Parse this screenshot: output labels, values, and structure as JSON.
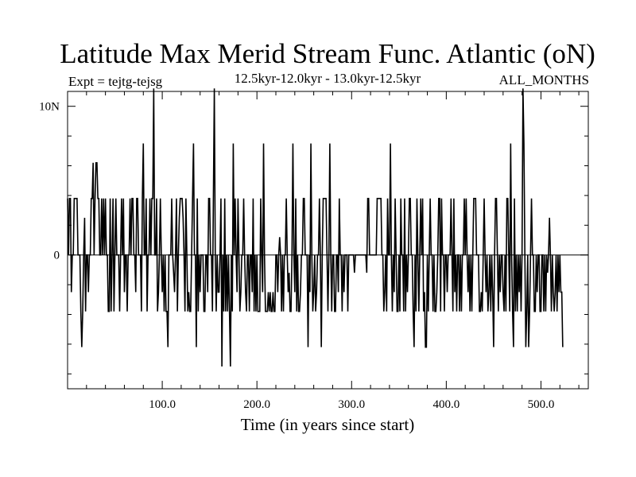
{
  "chart_data": {
    "type": "line",
    "title": "Latitude Max Merid Stream Func. Atlantic (oN)",
    "experiment": "Expt = tejtg-tejsg",
    "subtitle": "12.5kyr-12.0kyr - 13.0kyr-12.5kyr",
    "months": "ALL_MONTHS",
    "xlabel": "Time (in years since start)",
    "ylabel": "",
    "xlim": [
      0,
      550
    ],
    "ylim": [
      -9,
      11
    ],
    "x_ticks": [
      {
        "value": 100,
        "label": "100.0"
      },
      {
        "value": 200,
        "label": "200.0"
      },
      {
        "value": 300,
        "label": "300.0"
      },
      {
        "value": 400,
        "label": "400.0"
      },
      {
        "value": 500,
        "label": "500.0"
      }
    ],
    "y_ticks": [
      {
        "value": 0,
        "label": "0"
      },
      {
        "value": 10,
        "label": "10N"
      }
    ],
    "zero_line": true,
    "series": [
      {
        "step": 1,
        "values": [
          3.8,
          0,
          3.8,
          3.8,
          -2.5,
          0,
          0,
          3.8,
          3.8,
          3.8,
          3.8,
          0,
          0,
          0,
          -3.8,
          -6.2,
          -3.8,
          0,
          2.5,
          -3.8,
          0,
          0,
          -2.5,
          0,
          0,
          3.8,
          3.8,
          6.2,
          0,
          3.8,
          6.2,
          6.2,
          3.8,
          3.8,
          0,
          0,
          3.8,
          0,
          3.8,
          0,
          3.8,
          0,
          0,
          -3.8,
          -3.8,
          3.8,
          -3.8,
          0,
          3.8,
          -3.8,
          0,
          3.8,
          0,
          0,
          0,
          -3.8,
          0,
          3.8,
          0,
          3.8,
          -2.5,
          0,
          0,
          -3.8,
          0,
          0,
          3.8,
          0,
          3.8,
          3.8,
          0,
          0,
          -2.5,
          3.8,
          3.8,
          0,
          0,
          0,
          -3.8,
          3.8,
          7.5,
          0,
          0,
          3.8,
          -3.8,
          0,
          0,
          3.8,
          0,
          3.8,
          3.8,
          11.2,
          0,
          0,
          3.8,
          -3.8,
          -2.5,
          0,
          3.8,
          0,
          -2.5,
          0,
          -3.8,
          0,
          -3.8,
          -3.8,
          -6.2,
          0,
          0,
          0,
          3.8,
          0,
          -1.2,
          -2.5,
          0,
          3.8,
          -3.8,
          0,
          2.5,
          3.8,
          3.8,
          3.8,
          2.5,
          0,
          -3.8,
          3.8,
          0,
          -3.8,
          -2.5,
          -3.8,
          -3.8,
          0,
          3.8,
          7.5,
          0,
          0,
          -6.2,
          3.8,
          -3.8,
          0,
          -2.5,
          0,
          0,
          0,
          -3.8,
          -3.8,
          0,
          0,
          -2.5,
          3.8,
          3.8,
          0,
          0,
          -3.8,
          3.8,
          11.2,
          0,
          -3.8,
          0,
          -2.5,
          -2.5,
          0,
          3.8,
          -7.5,
          0,
          -3.8,
          3.8,
          -3.8,
          0,
          -3.8,
          0,
          -3.8,
          -7.5,
          0,
          -3.8,
          7.5,
          0,
          3.8,
          0,
          -2.5,
          3.8,
          0,
          -3.8,
          -2.5,
          0,
          0,
          3.8,
          0,
          -2.5,
          -3.8,
          0,
          0,
          -3.8,
          0,
          0,
          -2.5,
          3.8,
          -3.8,
          0,
          -3.8,
          0,
          -3.8,
          -3.8,
          -3.8,
          3.8,
          0,
          -2.5,
          7.5,
          0,
          -3.8,
          -3.8,
          -3.8,
          -2.5,
          -3.8,
          -2.5,
          -3.8,
          -3.8,
          -2.5,
          -3.8,
          -3.8,
          0,
          0,
          -2.5,
          0,
          1.2,
          0,
          -3.8,
          0,
          -3.8,
          0,
          0,
          3.8,
          0,
          -2.5,
          -1.2,
          -3.8,
          -3.8,
          0,
          7.5,
          0,
          -2.5,
          3.8,
          -3.8,
          0,
          -3.8,
          -3.8,
          -2.5,
          0,
          0,
          3.8,
          3.8,
          0,
          0,
          0,
          -6.2,
          0,
          -2.5,
          7.5,
          0,
          -3.8,
          -2.5,
          0,
          -3.8,
          -2.5,
          0,
          0,
          3.8,
          0,
          -6.2,
          0,
          3.8,
          3.8,
          3.8,
          3.8,
          0,
          -3.8,
          0,
          7.5,
          0,
          -3.8,
          0,
          0,
          -3.8,
          -3.8,
          0,
          0,
          -2.5,
          3.8,
          0,
          0,
          -3.8,
          0,
          -2.5,
          0,
          0,
          0,
          -3.8,
          0,
          0,
          0,
          0,
          0,
          0,
          -1.2,
          0,
          0,
          0,
          0,
          0,
          0,
          0,
          0,
          0,
          0,
          0,
          0,
          -1.2,
          3.8,
          3.8,
          0,
          0,
          0,
          0,
          0,
          0,
          0,
          0,
          3.8,
          3.8,
          3.8,
          3.8,
          3.8,
          0,
          0,
          -3.8,
          -2.5,
          0,
          -3.8,
          3.8,
          0,
          0,
          7.5,
          0,
          -3.8,
          0,
          -2.5,
          3.8,
          0,
          -3.8,
          -3.8,
          0,
          -3.8,
          3.8,
          0,
          0,
          -3.8,
          3.8,
          -3.8,
          0,
          -2.5,
          0,
          3.8,
          3.8,
          0,
          0,
          -3.8,
          -6.2,
          0,
          -3.8,
          3.8,
          0,
          -3.8,
          0,
          3.8,
          0,
          3.8,
          -3.8,
          -2.5,
          -6.2,
          -6.2,
          0,
          -3.8,
          0,
          3.8,
          0,
          0,
          -3.8,
          0,
          -3.8,
          -3.8,
          -2.5,
          0,
          3.8,
          3.8,
          -3.8,
          3.8,
          0,
          0,
          -3.8,
          0,
          0,
          -2.5,
          0,
          0,
          0,
          3.8,
          0,
          -3.8,
          3.8,
          -2.5,
          0,
          -3.8,
          0,
          0,
          -3.8,
          0,
          -3.8,
          0,
          0,
          3.8,
          0,
          3.8,
          0,
          -2.5,
          0,
          -3.8,
          0,
          -3.8,
          0,
          3.8,
          3.8,
          3.8,
          0,
          0,
          0,
          -3.8,
          -3.8,
          -2.5,
          -3.8,
          0,
          3.8,
          0,
          -2.5,
          0,
          -3.8,
          -2.5,
          0,
          -3.8,
          0,
          -2.5,
          -6.2,
          0,
          3.8,
          3.8,
          0,
          -3.8,
          0,
          -2.5,
          0,
          0,
          -2.5,
          -3.8,
          0,
          -3.8,
          3.8,
          3.8,
          0,
          -3.8,
          7.5,
          0,
          -3.8,
          -6.2,
          3.8,
          -3.8,
          0,
          -3.8,
          0,
          -2.5,
          0,
          -3.8,
          0,
          11.2,
          7.5,
          0,
          -6.2,
          -3.8,
          0,
          -6.2,
          -3.8,
          0,
          3.8,
          0,
          0,
          -3.8,
          -3.8,
          0,
          -2.5,
          0,
          0,
          -3.8,
          -3.8,
          0,
          0,
          -3.8,
          0,
          -3.8,
          0,
          -1.2,
          0,
          2.5,
          0,
          -3.8,
          0,
          -2.5,
          -3.8,
          -2.5,
          0,
          -3.8,
          0,
          -2.5,
          0,
          -2.5,
          -2.5,
          -6.2
        ]
      }
    ]
  }
}
